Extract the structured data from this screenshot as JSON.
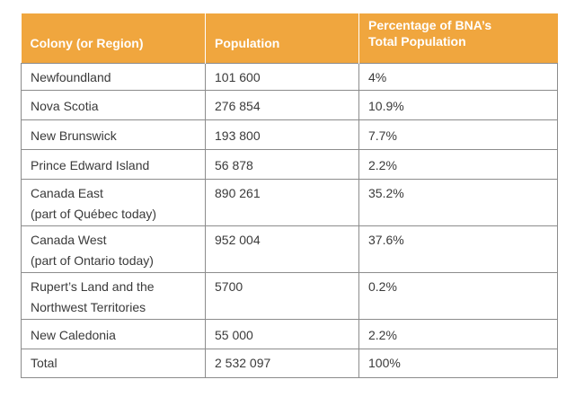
{
  "table": {
    "headers": {
      "colony": "Colony (or Region)",
      "population": "Population",
      "percentage_line1": "Percentage of BNA’s",
      "percentage_line2": "Total Population"
    },
    "rows": [
      {
        "colony": [
          "Newfoundland"
        ],
        "population": "101 600",
        "percentage": "4%"
      },
      {
        "colony": [
          "Nova Scotia"
        ],
        "population": "276 854",
        "percentage": "10.9%"
      },
      {
        "colony": [
          "New Brunswick"
        ],
        "population": "193 800",
        "percentage": "7.7%"
      },
      {
        "colony": [
          "Prince Edward Island"
        ],
        "population": "56 878",
        "percentage": "2.2%"
      },
      {
        "colony": [
          "Canada East",
          "(part of Québec today)"
        ],
        "population": "890 261",
        "percentage": "35.2%"
      },
      {
        "colony": [
          "Canada West",
          "(part of Ontario today)"
        ],
        "population": "952 004",
        "percentage": "37.6%"
      },
      {
        "colony": [
          "Rupert’s Land and the",
          "Northwest Territories"
        ],
        "population": "5700",
        "percentage": "0.2%"
      },
      {
        "colony": [
          "New Caledonia"
        ],
        "population": "55 000",
        "percentage": "2.2%"
      },
      {
        "colony": [
          "Total"
        ],
        "population": "2 532 097",
        "percentage": "100%"
      }
    ]
  }
}
